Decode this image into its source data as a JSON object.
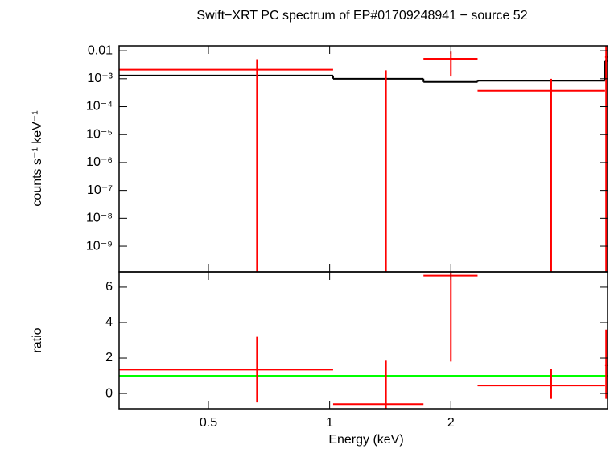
{
  "chart_data": [
    {
      "type": "errorbar",
      "title": "Swift−XRT PC spectrum of EP#01709248941 − source 52",
      "ylabel": "counts s⁻¹ keV⁻¹",
      "xlog": true,
      "ylog": true,
      "xlim": [
        0.3,
        4.9
      ],
      "ylim": [
        1.2e-10,
        0.015
      ],
      "yticks": [
        {
          "value": 0.01,
          "label": "0.01"
        },
        {
          "value": 0.001,
          "label": "10⁻³"
        },
        {
          "value": 0.0001,
          "label": "10⁻⁴"
        },
        {
          "value": 1e-05,
          "label": "10⁻⁵"
        },
        {
          "value": 1e-06,
          "label": "10⁻⁶"
        },
        {
          "value": 1e-07,
          "label": "10⁻⁷"
        },
        {
          "value": 1e-08,
          "label": "10⁻⁸"
        },
        {
          "value": 1e-09,
          "label": "10⁻⁹"
        }
      ],
      "x": [
        0.66,
        1.38,
        2.0,
        3.55,
        4.86
      ],
      "xlow": [
        0.3,
        1.02,
        1.71,
        2.33,
        4.83
      ],
      "xhigh": [
        1.02,
        1.71,
        2.33,
        4.83,
        4.9
      ],
      "values": [
        0.0021,
        null,
        0.0052,
        0.00037,
        0.006
      ],
      "ylow": [
        null,
        null,
        0.0012,
        null,
        null
      ],
      "yhigh": [
        0.005,
        0.002,
        0.0093,
        0.001,
        null
      ],
      "color": "#ff0000",
      "model": [
        0.0013,
        0.001,
        0.00077,
        0.00085,
        0.0043
      ],
      "model_color": "#000000"
    },
    {
      "type": "errorbar",
      "ylabel": "ratio",
      "xlabel": "Energy (keV)",
      "xlog": true,
      "ylog": false,
      "xlim": [
        0.3,
        4.9
      ],
      "ylim": [
        -0.86,
        6.86
      ],
      "xticks": [
        0.5,
        1,
        2
      ],
      "yticks": [
        0,
        2,
        4,
        6
      ],
      "x": [
        0.66,
        1.38,
        2.0,
        3.55,
        4.86
      ],
      "xlow": [
        0.3,
        1.02,
        1.71,
        2.33,
        4.83
      ],
      "xhigh": [
        1.02,
        1.71,
        2.33,
        4.83,
        4.9
      ],
      "values": [
        1.35,
        -0.6,
        6.65,
        0.45,
        1.6
      ],
      "ylow": [
        -0.5,
        null,
        1.8,
        -0.3,
        -0.3
      ],
      "yhigh": [
        3.2,
        1.85,
        null,
        1.4,
        3.6
      ],
      "color": "#ff0000",
      "reference": 1,
      "reference_color": "#00ff00"
    }
  ]
}
